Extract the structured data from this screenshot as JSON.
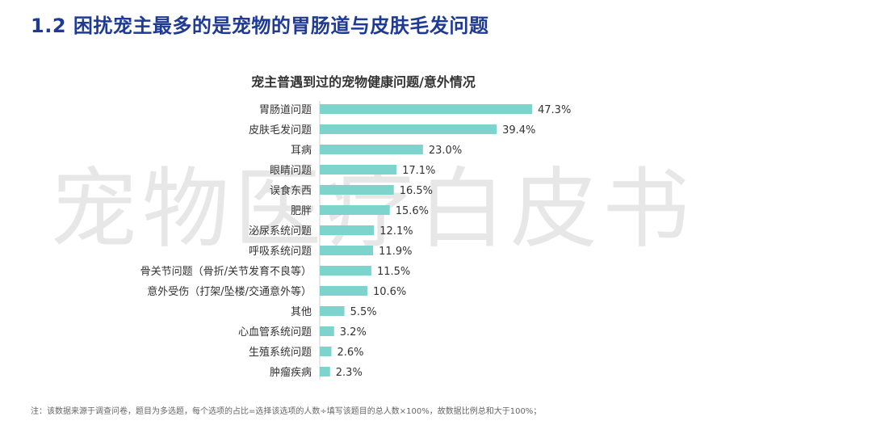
{
  "header": {
    "title": "1.2 困扰宠主最多的是宠物的胃肠道与皮肤毛发问题"
  },
  "watermark": {
    "text": "宠物医疗白皮书"
  },
  "footnote": "注：该数据来源于调查问卷，题目为多选题，每个选项的占比=选择该选项的人数÷填写该题目的总人数×100%，故数据比例总和大于100%；",
  "colors": {
    "bar": "#7dd4cd",
    "title": "#1f3a93"
  },
  "chart_data": {
    "type": "bar",
    "orientation": "horizontal",
    "title": "宠主普遇到过的宠物健康问题/意外情况",
    "categories": [
      "胃肠道问题",
      "皮肤毛发问题",
      "耳病",
      "眼睛问题",
      "误食东西",
      "肥胖",
      "泌尿系统问题",
      "呼吸系统问题",
      "骨关节问题（骨折/关节发育不良等）",
      "意外受伤（打架/坠楼/交通意外等）",
      "其他",
      "心血管系统问题",
      "生殖系统问题",
      "肿瘤疾病"
    ],
    "values": [
      47.3,
      39.4,
      23.0,
      17.1,
      16.5,
      15.6,
      12.1,
      11.9,
      11.5,
      10.6,
      5.5,
      3.2,
      2.6,
      2.3
    ],
    "value_labels": [
      "47.3%",
      "39.4%",
      "23.0%",
      "17.1%",
      "16.5%",
      "15.6%",
      "12.1%",
      "11.9%",
      "11.5%",
      "10.6%",
      "5.5%",
      "3.2%",
      "2.6%",
      "2.3%"
    ],
    "xlim": [
      0,
      50
    ],
    "grid": false,
    "legend": "none"
  }
}
